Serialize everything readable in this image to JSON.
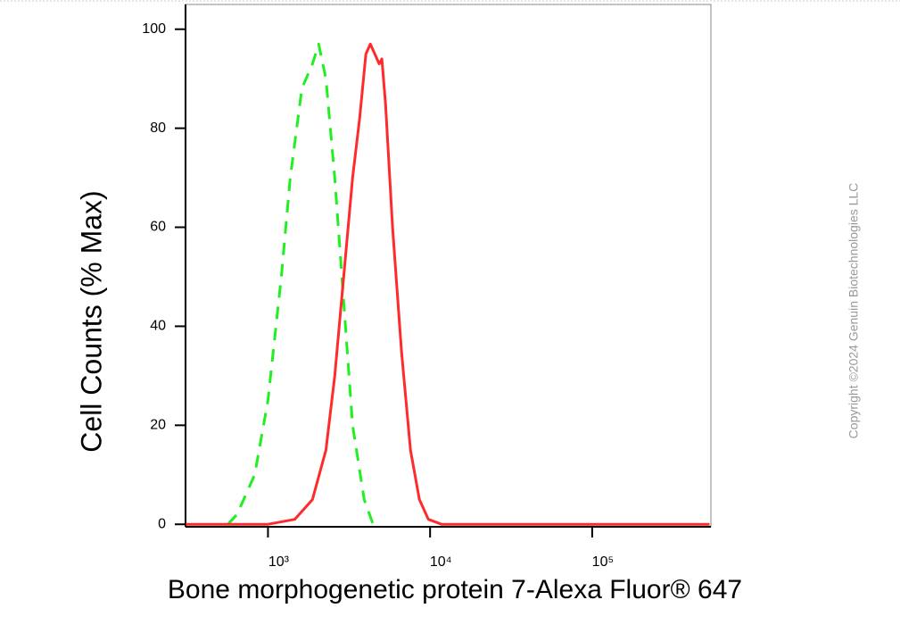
{
  "chart_data": {
    "type": "line",
    "x_label": "Bone morphogenetic protein 7-Alexa Fluor® 647",
    "y_label": "Cell Counts (% Max)",
    "copyright": "Copyright ©2024 Genuin Biotechnologies LLC",
    "x_scale": "log",
    "xlim": [
      310,
      540000
    ],
    "ylim": [
      -0.5,
      105
    ],
    "xticks": [
      {
        "value": 1000,
        "label": "10³"
      },
      {
        "value": 10000,
        "label": "10⁴"
      },
      {
        "value": 100000,
        "label": "10⁵"
      }
    ],
    "yticks": [
      0,
      20,
      40,
      60,
      80,
      100
    ],
    "series": [
      {
        "color": "#22ee22",
        "dashed": true,
        "x": [
          566,
          645,
          828,
          1000,
          1208,
          1372,
          1617,
          1880,
          2055,
          2277,
          2582,
          2929,
          3325,
          3924,
          4450
        ],
        "values": [
          0,
          2,
          10,
          25,
          50,
          70,
          88,
          93,
          97,
          90,
          70,
          45,
          20,
          5,
          0
        ]
      },
      {
        "color": "#ff2a2a",
        "dashed": false,
        "x": [
          312,
          1000,
          1462,
          1880,
          2277,
          2582,
          2929,
          3325,
          3678,
          4018,
          4283,
          4563,
          4853,
          5043,
          5310,
          5868,
          6663,
          7567,
          8594,
          9761,
          11780,
          530000
        ],
        "values": [
          0,
          0,
          1,
          5,
          15,
          30,
          50,
          70,
          82,
          95,
          97,
          95,
          93,
          94,
          85,
          60,
          35,
          15,
          5,
          1,
          0,
          0
        ]
      }
    ]
  }
}
